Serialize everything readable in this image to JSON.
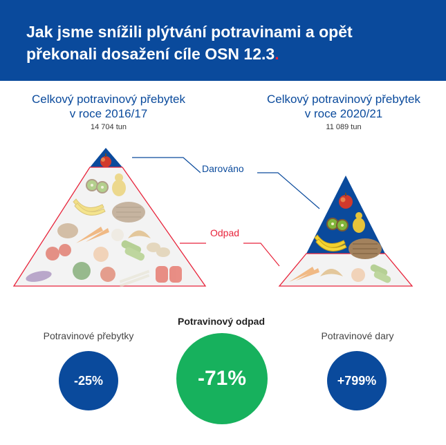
{
  "header": {
    "title": "Jak jsme snížili plýtvání potravinami a opět překonali dosažení cíle OSN 12.3",
    "title_dot": "."
  },
  "pyramid_left": {
    "heading_line1": "Celkový potravinový přebytek",
    "heading_line2": "v roce 2016/17",
    "amount": "14 704 tun"
  },
  "pyramid_right": {
    "heading_line1": "Celkový potravinový přebytek",
    "heading_line2": "v roce 2020/21",
    "amount": "11 089 tun"
  },
  "callouts": {
    "donated": "Darováno",
    "waste": "Odpad"
  },
  "kpis": {
    "surplus": {
      "label": "Potravinové přebytky",
      "value": "-25%"
    },
    "waste": {
      "label": "Potravinový odpad",
      "value": "-71%"
    },
    "donations": {
      "label": "Potravinové dary",
      "value": "+799%"
    }
  },
  "colors": {
    "brand_blue": "#0a4a9c",
    "accent_red": "#e8233a",
    "accent_green": "#17b15d"
  }
}
